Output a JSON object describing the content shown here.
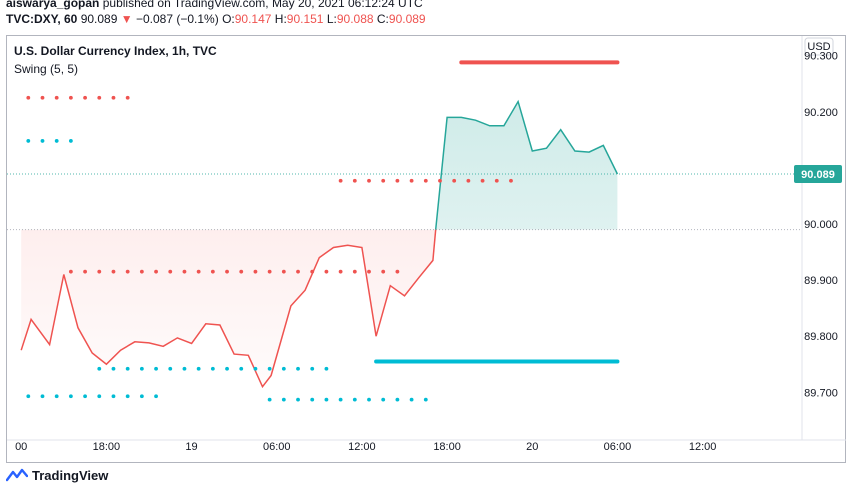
{
  "header": {
    "author": "aiswarya_gopan",
    "published_text": "published on TradingView.com, May 20, 2021 06:12:24 UTC",
    "symbol": "TVC:DXY, 60",
    "last": "90.089",
    "arrow": "▼",
    "change": "−0.087 (−0.1%)",
    "o_label": "O:",
    "o_value": "90.147",
    "h_label": "H:",
    "h_value": "90.151",
    "l_label": "L:",
    "l_value": "90.088",
    "c_label": "C:",
    "c_value": "90.089"
  },
  "legend": {
    "title": "U.S. Dollar Currency Index, 1h, TVC",
    "indicator": "Swing (5, 5)"
  },
  "footer": {
    "brand": "TradingView",
    "logo_icon": "tradingview-logo-icon"
  },
  "colors": {
    "down": "#ef5350",
    "up": "#26a69a",
    "support": "#00bcd4",
    "axis_text": "#131722",
    "price_label_bg": "#26a69a"
  },
  "chart_data": {
    "type": "area",
    "title": "U.S. Dollar Currency Index, 1h, TVC",
    "currency": "USD",
    "baseline": 89.99,
    "last_price": 90.089,
    "last_price_label": "90.089",
    "x_range": [
      -1,
      55
    ],
    "ylim": [
      89.615,
      90.335
    ],
    "y_ticks": [
      {
        "v": 90.3,
        "label": "90.300"
      },
      {
        "v": 90.2,
        "label": "90.200"
      },
      {
        "v": 90.0,
        "label": "90.000"
      },
      {
        "v": 89.9,
        "label": "89.900"
      },
      {
        "v": 89.8,
        "label": "89.800"
      },
      {
        "v": 89.7,
        "label": "89.700"
      }
    ],
    "x_ticks": [
      {
        "x": 0,
        "label": "00"
      },
      {
        "x": 6,
        "label": "18:00"
      },
      {
        "x": 12,
        "label": "19"
      },
      {
        "x": 18,
        "label": "06:00"
      },
      {
        "x": 24,
        "label": "12:00"
      },
      {
        "x": 30,
        "label": "18:00"
      },
      {
        "x": 36,
        "label": "20"
      },
      {
        "x": 42,
        "label": "06:00"
      },
      {
        "x": 48,
        "label": "12:00"
      }
    ],
    "series": [
      {
        "x": [
          0,
          0.7,
          2,
          3,
          4,
          5,
          6,
          7,
          8,
          9,
          10,
          11,
          12,
          13,
          14,
          15,
          16,
          17,
          17.6,
          19,
          20,
          21,
          22,
          23,
          24,
          25,
          26,
          27,
          28,
          29,
          29.2,
          30,
          31,
          32,
          33,
          34,
          35,
          36,
          37,
          38,
          39,
          40,
          41,
          42
        ],
        "y": [
          89.775,
          89.83,
          89.785,
          89.91,
          89.815,
          89.77,
          89.75,
          89.775,
          89.79,
          89.788,
          89.782,
          89.797,
          89.787,
          89.822,
          89.82,
          89.768,
          89.766,
          89.71,
          89.73,
          89.854,
          89.882,
          89.94,
          89.958,
          89.962,
          89.958,
          89.8,
          89.89,
          89.872,
          89.904,
          89.935,
          89.99,
          90.19,
          90.19,
          90.185,
          90.175,
          90.175,
          90.218,
          90.13,
          90.135,
          90.168,
          90.13,
          90.128,
          90.14,
          90.089
        ]
      }
    ],
    "swing_levels": [
      {
        "kind": "resistance",
        "value": 90.225,
        "x0": 0.5,
        "x1": 8,
        "style": "dots"
      },
      {
        "kind": "support",
        "value": 90.148,
        "x0": 0.5,
        "x1": 4,
        "style": "dots"
      },
      {
        "kind": "resistance",
        "value": 90.077,
        "x0": 22.5,
        "x1": 35,
        "style": "dots"
      },
      {
        "kind": "resistance",
        "value": 89.915,
        "x0": 3.5,
        "x1": 27,
        "style": "dots"
      },
      {
        "kind": "support",
        "value": 89.742,
        "x0": 5.5,
        "x1": 22,
        "style": "dots"
      },
      {
        "kind": "support",
        "value": 89.693,
        "x0": 0.5,
        "x1": 10,
        "style": "dots"
      },
      {
        "kind": "support",
        "value": 89.687,
        "x0": 17.5,
        "x1": 29,
        "style": "dots"
      },
      {
        "kind": "resistance",
        "value": 90.288,
        "x0": 31,
        "x1": 42,
        "style": "solid"
      },
      {
        "kind": "support",
        "value": 89.755,
        "x0": 25,
        "x1": 42,
        "style": "solid"
      }
    ]
  }
}
